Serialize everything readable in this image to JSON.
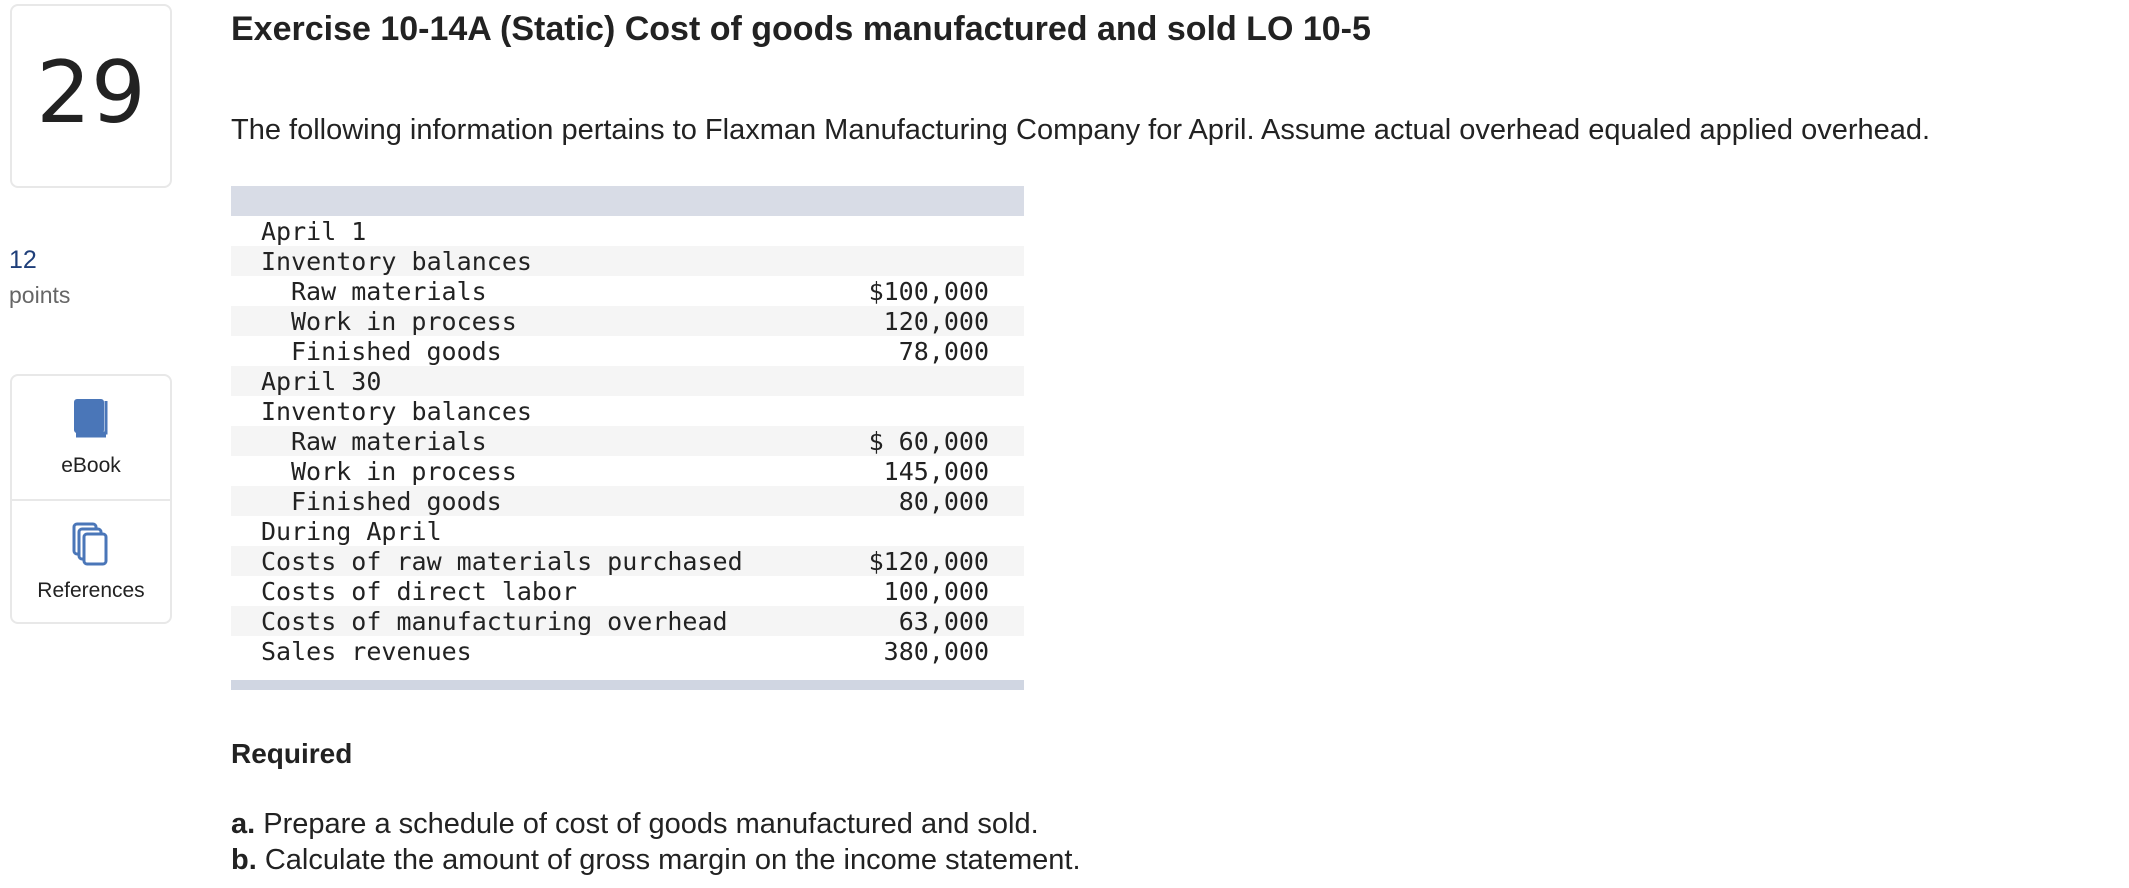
{
  "question": {
    "number": "29",
    "points_value": "12",
    "points_label": "points"
  },
  "tools": [
    {
      "label": "eBook",
      "icon": "book-icon"
    },
    {
      "label": "References",
      "icon": "copy-icon"
    }
  ],
  "accent_color": "#4a76b8",
  "title": "Exercise 10-14A (Static) Cost of goods manufactured and sold LO 10-5",
  "intro": "The following information pertains to Flaxman Manufacturing Company for April. Assume actual overhead equaled applied overhead.",
  "table": {
    "rows": [
      {
        "label": "April 1",
        "value": "",
        "indent": false
      },
      {
        "label": "Inventory balances",
        "value": "",
        "indent": false
      },
      {
        "label": "Raw materials",
        "value": "$100,000",
        "indent": true
      },
      {
        "label": "Work in process",
        "value": "120,000",
        "indent": true
      },
      {
        "label": "Finished goods",
        "value": "78,000",
        "indent": true
      },
      {
        "label": "April 30",
        "value": "",
        "indent": false
      },
      {
        "label": "Inventory balances",
        "value": "",
        "indent": false
      },
      {
        "label": "Raw materials",
        "value": "$ 60,000",
        "indent": true
      },
      {
        "label": "Work in process",
        "value": "145,000",
        "indent": true
      },
      {
        "label": "Finished goods",
        "value": "80,000",
        "indent": true
      },
      {
        "label": "During April",
        "value": "",
        "indent": false
      },
      {
        "label": "Costs of raw materials purchased",
        "value": "$120,000",
        "indent": false
      },
      {
        "label": "Costs of direct labor",
        "value": "100,000",
        "indent": false
      },
      {
        "label": "Costs of manufacturing overhead",
        "value": "63,000",
        "indent": false
      },
      {
        "label": "Sales revenues",
        "value": "380,000",
        "indent": false
      }
    ]
  },
  "required": {
    "heading": "Required",
    "parts": [
      {
        "letter": "a.",
        "text": "Prepare a schedule of cost of goods manufactured and sold."
      },
      {
        "letter": "b.",
        "text": "Calculate the amount of gross margin on the income statement."
      }
    ]
  }
}
